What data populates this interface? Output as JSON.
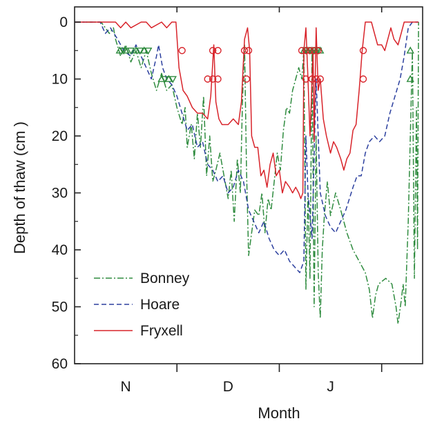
{
  "chart_data": {
    "type": "line",
    "title": "",
    "xlabel": "Month",
    "ylabel": "Depth of thaw (cm )",
    "x_tick_labels": [
      "N",
      "D",
      "J"
    ],
    "x_tick_positions": [
      0.5,
      1.5,
      2.5
    ],
    "xlim": [
      0,
      3.4
    ],
    "ylim": [
      0,
      60
    ],
    "y_inverted": true,
    "y_ticks": [
      0,
      10,
      20,
      30,
      40,
      50,
      60
    ],
    "grid": false,
    "legend": {
      "placement": "bottom-left"
    },
    "series": [
      {
        "name": "Bonney",
        "color": "#2e8b3e",
        "dash": "9,3,2,3",
        "points": [
          [
            0,
            0
          ],
          [
            0.2,
            0
          ],
          [
            0.26,
            0
          ],
          [
            0.3,
            1
          ],
          [
            0.34,
            2
          ],
          [
            0.38,
            1
          ],
          [
            0.4,
            3
          ],
          [
            0.45,
            6
          ],
          [
            0.5,
            4
          ],
          [
            0.55,
            7
          ],
          [
            0.6,
            5
          ],
          [
            0.65,
            8
          ],
          [
            0.7,
            5
          ],
          [
            0.75,
            9
          ],
          [
            0.8,
            12
          ],
          [
            0.85,
            9
          ],
          [
            0.9,
            12
          ],
          [
            0.95,
            11
          ],
          [
            1.0,
            15
          ],
          [
            1.05,
            18
          ],
          [
            1.08,
            15
          ],
          [
            1.1,
            22
          ],
          [
            1.14,
            18
          ],
          [
            1.17,
            24
          ],
          [
            1.2,
            16
          ],
          [
            1.23,
            22
          ],
          [
            1.26,
            13
          ],
          [
            1.29,
            27
          ],
          [
            1.32,
            20
          ],
          [
            1.35,
            28
          ],
          [
            1.38,
            26
          ],
          [
            1.42,
            23
          ],
          [
            1.46,
            27
          ],
          [
            1.5,
            31
          ],
          [
            1.53,
            26
          ],
          [
            1.56,
            35
          ],
          [
            1.59,
            24
          ],
          [
            1.62,
            30
          ],
          [
            1.64,
            14
          ],
          [
            1.66,
            4
          ],
          [
            1.68,
            26
          ],
          [
            1.7,
            41
          ],
          [
            1.73,
            37
          ],
          [
            1.76,
            33
          ],
          [
            1.8,
            34
          ],
          [
            1.83,
            30
          ],
          [
            1.86,
            37
          ],
          [
            1.89,
            31
          ],
          [
            1.92,
            33
          ],
          [
            1.95,
            28
          ],
          [
            1.98,
            23
          ],
          [
            2.01,
            26
          ],
          [
            2.04,
            19
          ],
          [
            2.07,
            15
          ],
          [
            2.1,
            16
          ],
          [
            2.13,
            12
          ],
          [
            2.16,
            10
          ],
          [
            2.19,
            8
          ],
          [
            2.22,
            10
          ],
          [
            2.24,
            5
          ],
          [
            2.26,
            47
          ],
          [
            2.28,
            30
          ],
          [
            2.3,
            45
          ],
          [
            2.32,
            5
          ],
          [
            2.34,
            50
          ],
          [
            2.36,
            20
          ],
          [
            2.38,
            44
          ],
          [
            2.4,
            52
          ],
          [
            2.42,
            40
          ],
          [
            2.44,
            34
          ],
          [
            2.47,
            28
          ],
          [
            2.5,
            34
          ],
          [
            2.55,
            30
          ],
          [
            2.6,
            33
          ],
          [
            2.66,
            37
          ],
          [
            2.72,
            40
          ],
          [
            2.78,
            42
          ],
          [
            2.84,
            44
          ],
          [
            2.88,
            47
          ],
          [
            2.91,
            52
          ],
          [
            2.94,
            48
          ],
          [
            2.97,
            46
          ],
          [
            3.04,
            45
          ],
          [
            3.1,
            46
          ],
          [
            3.14,
            50
          ],
          [
            3.16,
            53
          ],
          [
            3.19,
            49
          ],
          [
            3.21,
            46
          ],
          [
            3.23,
            50
          ],
          [
            3.26,
            35
          ],
          [
            3.28,
            20
          ],
          [
            3.3,
            5
          ],
          [
            3.32,
            45
          ],
          [
            3.34,
            15
          ],
          [
            3.35,
            40
          ],
          [
            3.36,
            0
          ]
        ]
      },
      {
        "name": "Hoare",
        "color": "#2b3f9e",
        "dash": "7,4",
        "points": [
          [
            0,
            0
          ],
          [
            0.25,
            0
          ],
          [
            0.3,
            2
          ],
          [
            0.35,
            1
          ],
          [
            0.42,
            3
          ],
          [
            0.48,
            5
          ],
          [
            0.55,
            6
          ],
          [
            0.6,
            4
          ],
          [
            0.65,
            6
          ],
          [
            0.7,
            8
          ],
          [
            0.75,
            10
          ],
          [
            0.8,
            6
          ],
          [
            0.82,
            4
          ],
          [
            0.86,
            8
          ],
          [
            0.9,
            10
          ],
          [
            0.95,
            11
          ],
          [
            1.0,
            13
          ],
          [
            1.05,
            16
          ],
          [
            1.1,
            19
          ],
          [
            1.15,
            18
          ],
          [
            1.2,
            22
          ],
          [
            1.25,
            21
          ],
          [
            1.3,
            25
          ],
          [
            1.35,
            26
          ],
          [
            1.4,
            28
          ],
          [
            1.45,
            27
          ],
          [
            1.5,
            30
          ],
          [
            1.55,
            29
          ],
          [
            1.6,
            26
          ],
          [
            1.65,
            28
          ],
          [
            1.7,
            33
          ],
          [
            1.75,
            35
          ],
          [
            1.8,
            37
          ],
          [
            1.85,
            35
          ],
          [
            1.9,
            38
          ],
          [
            1.95,
            40
          ],
          [
            2.0,
            41
          ],
          [
            2.05,
            40
          ],
          [
            2.1,
            42
          ],
          [
            2.15,
            43
          ],
          [
            2.2,
            44
          ],
          [
            2.24,
            42
          ],
          [
            2.26,
            20
          ],
          [
            2.28,
            30
          ],
          [
            2.32,
            38
          ],
          [
            2.36,
            10
          ],
          [
            2.4,
            30
          ],
          [
            2.45,
            34
          ],
          [
            2.5,
            36
          ],
          [
            2.55,
            37
          ],
          [
            2.6,
            35
          ],
          [
            2.65,
            33
          ],
          [
            2.72,
            29
          ],
          [
            2.76,
            27
          ],
          [
            2.8,
            27
          ],
          [
            2.84,
            23
          ],
          [
            2.88,
            21
          ],
          [
            2.93,
            20
          ],
          [
            2.98,
            21
          ],
          [
            3.03,
            20
          ],
          [
            3.08,
            16
          ],
          [
            3.13,
            13
          ],
          [
            3.18,
            10
          ],
          [
            3.22,
            6
          ],
          [
            3.26,
            1
          ],
          [
            3.3,
            0
          ],
          [
            3.36,
            0
          ]
        ]
      },
      {
        "name": "Fryxell",
        "color": "#d8232a",
        "dash": "",
        "points": [
          [
            0,
            0
          ],
          [
            0.4,
            0
          ],
          [
            0.45,
            1
          ],
          [
            0.5,
            0
          ],
          [
            0.55,
            1
          ],
          [
            0.65,
            0
          ],
          [
            0.7,
            0
          ],
          [
            0.75,
            1
          ],
          [
            0.85,
            0
          ],
          [
            0.9,
            1
          ],
          [
            0.95,
            0
          ],
          [
            0.99,
            0
          ],
          [
            1.02,
            8
          ],
          [
            1.06,
            12
          ],
          [
            1.1,
            13
          ],
          [
            1.15,
            15
          ],
          [
            1.2,
            16
          ],
          [
            1.25,
            16
          ],
          [
            1.3,
            17
          ],
          [
            1.33,
            13
          ],
          [
            1.36,
            4
          ],
          [
            1.38,
            14
          ],
          [
            1.41,
            17
          ],
          [
            1.44,
            18
          ],
          [
            1.5,
            18
          ],
          [
            1.55,
            17
          ],
          [
            1.6,
            18
          ],
          [
            1.63,
            14
          ],
          [
            1.66,
            3
          ],
          [
            1.69,
            1
          ],
          [
            1.71,
            5
          ],
          [
            1.73,
            20
          ],
          [
            1.76,
            22
          ],
          [
            1.79,
            22
          ],
          [
            1.82,
            27
          ],
          [
            1.85,
            26
          ],
          [
            1.88,
            29
          ],
          [
            1.91,
            25
          ],
          [
            1.94,
            23
          ],
          [
            1.97,
            27
          ],
          [
            2.0,
            26
          ],
          [
            2.03,
            30
          ],
          [
            2.06,
            28
          ],
          [
            2.1,
            29
          ],
          [
            2.13,
            30
          ],
          [
            2.16,
            29
          ],
          [
            2.19,
            30
          ],
          [
            2.21,
            31
          ],
          [
            2.23,
            30
          ],
          [
            2.24,
            5
          ],
          [
            2.26,
            1
          ],
          [
            2.28,
            10
          ],
          [
            2.3,
            20
          ],
          [
            2.33,
            5
          ],
          [
            2.34,
            21
          ],
          [
            2.36,
            1
          ],
          [
            2.38,
            12
          ],
          [
            2.4,
            10
          ],
          [
            2.43,
            17
          ],
          [
            2.46,
            20
          ],
          [
            2.5,
            23
          ],
          [
            2.53,
            21
          ],
          [
            2.56,
            22
          ],
          [
            2.6,
            24
          ],
          [
            2.63,
            26
          ],
          [
            2.66,
            24
          ],
          [
            2.69,
            23
          ],
          [
            2.72,
            19
          ],
          [
            2.75,
            18
          ],
          [
            2.78,
            12
          ],
          [
            2.81,
            5
          ],
          [
            2.84,
            0
          ],
          [
            2.9,
            0
          ],
          [
            2.93,
            2
          ],
          [
            2.96,
            4
          ],
          [
            3.0,
            4
          ],
          [
            3.03,
            5
          ],
          [
            3.06,
            3
          ],
          [
            3.09,
            1
          ],
          [
            3.12,
            3
          ],
          [
            3.16,
            4
          ],
          [
            3.19,
            2
          ],
          [
            3.22,
            0
          ],
          [
            3.36,
            0
          ]
        ]
      }
    ],
    "markers": [
      {
        "series": "Bonney",
        "shape": "triangle-up",
        "points": [
          [
            0.44,
            5
          ],
          [
            0.5,
            5
          ],
          [
            0.6,
            5
          ],
          [
            0.68,
            5
          ],
          [
            0.85,
            10
          ],
          [
            0.92,
            10
          ],
          [
            2.24,
            5
          ],
          [
            2.28,
            5
          ],
          [
            2.32,
            5
          ],
          [
            2.36,
            5
          ],
          [
            2.4,
            5
          ],
          [
            3.28,
            5
          ],
          [
            3.28,
            10
          ]
        ]
      },
      {
        "series": "Bonney",
        "shape": "triangle-down",
        "points": [
          [
            0.48,
            5
          ],
          [
            0.55,
            5
          ],
          [
            0.64,
            5
          ],
          [
            0.72,
            5
          ],
          [
            0.88,
            10
          ],
          [
            0.96,
            10
          ],
          [
            2.26,
            5
          ],
          [
            2.3,
            5
          ],
          [
            2.34,
            5
          ],
          [
            2.38,
            5
          ]
        ]
      },
      {
        "series": "Fryxell",
        "shape": "circle",
        "points": [
          [
            1.05,
            5
          ],
          [
            1.3,
            10
          ],
          [
            1.35,
            10
          ],
          [
            1.4,
            10
          ],
          [
            1.35,
            5
          ],
          [
            1.4,
            5
          ],
          [
            1.66,
            5
          ],
          [
            1.7,
            5
          ],
          [
            1.68,
            10
          ],
          [
            2.22,
            5
          ],
          [
            2.26,
            5
          ],
          [
            2.3,
            5
          ],
          [
            2.34,
            5
          ],
          [
            2.38,
            5
          ],
          [
            2.26,
            10
          ],
          [
            2.32,
            10
          ],
          [
            2.36,
            10
          ],
          [
            2.4,
            10
          ],
          [
            2.82,
            5
          ],
          [
            2.82,
            10
          ]
        ]
      }
    ]
  }
}
